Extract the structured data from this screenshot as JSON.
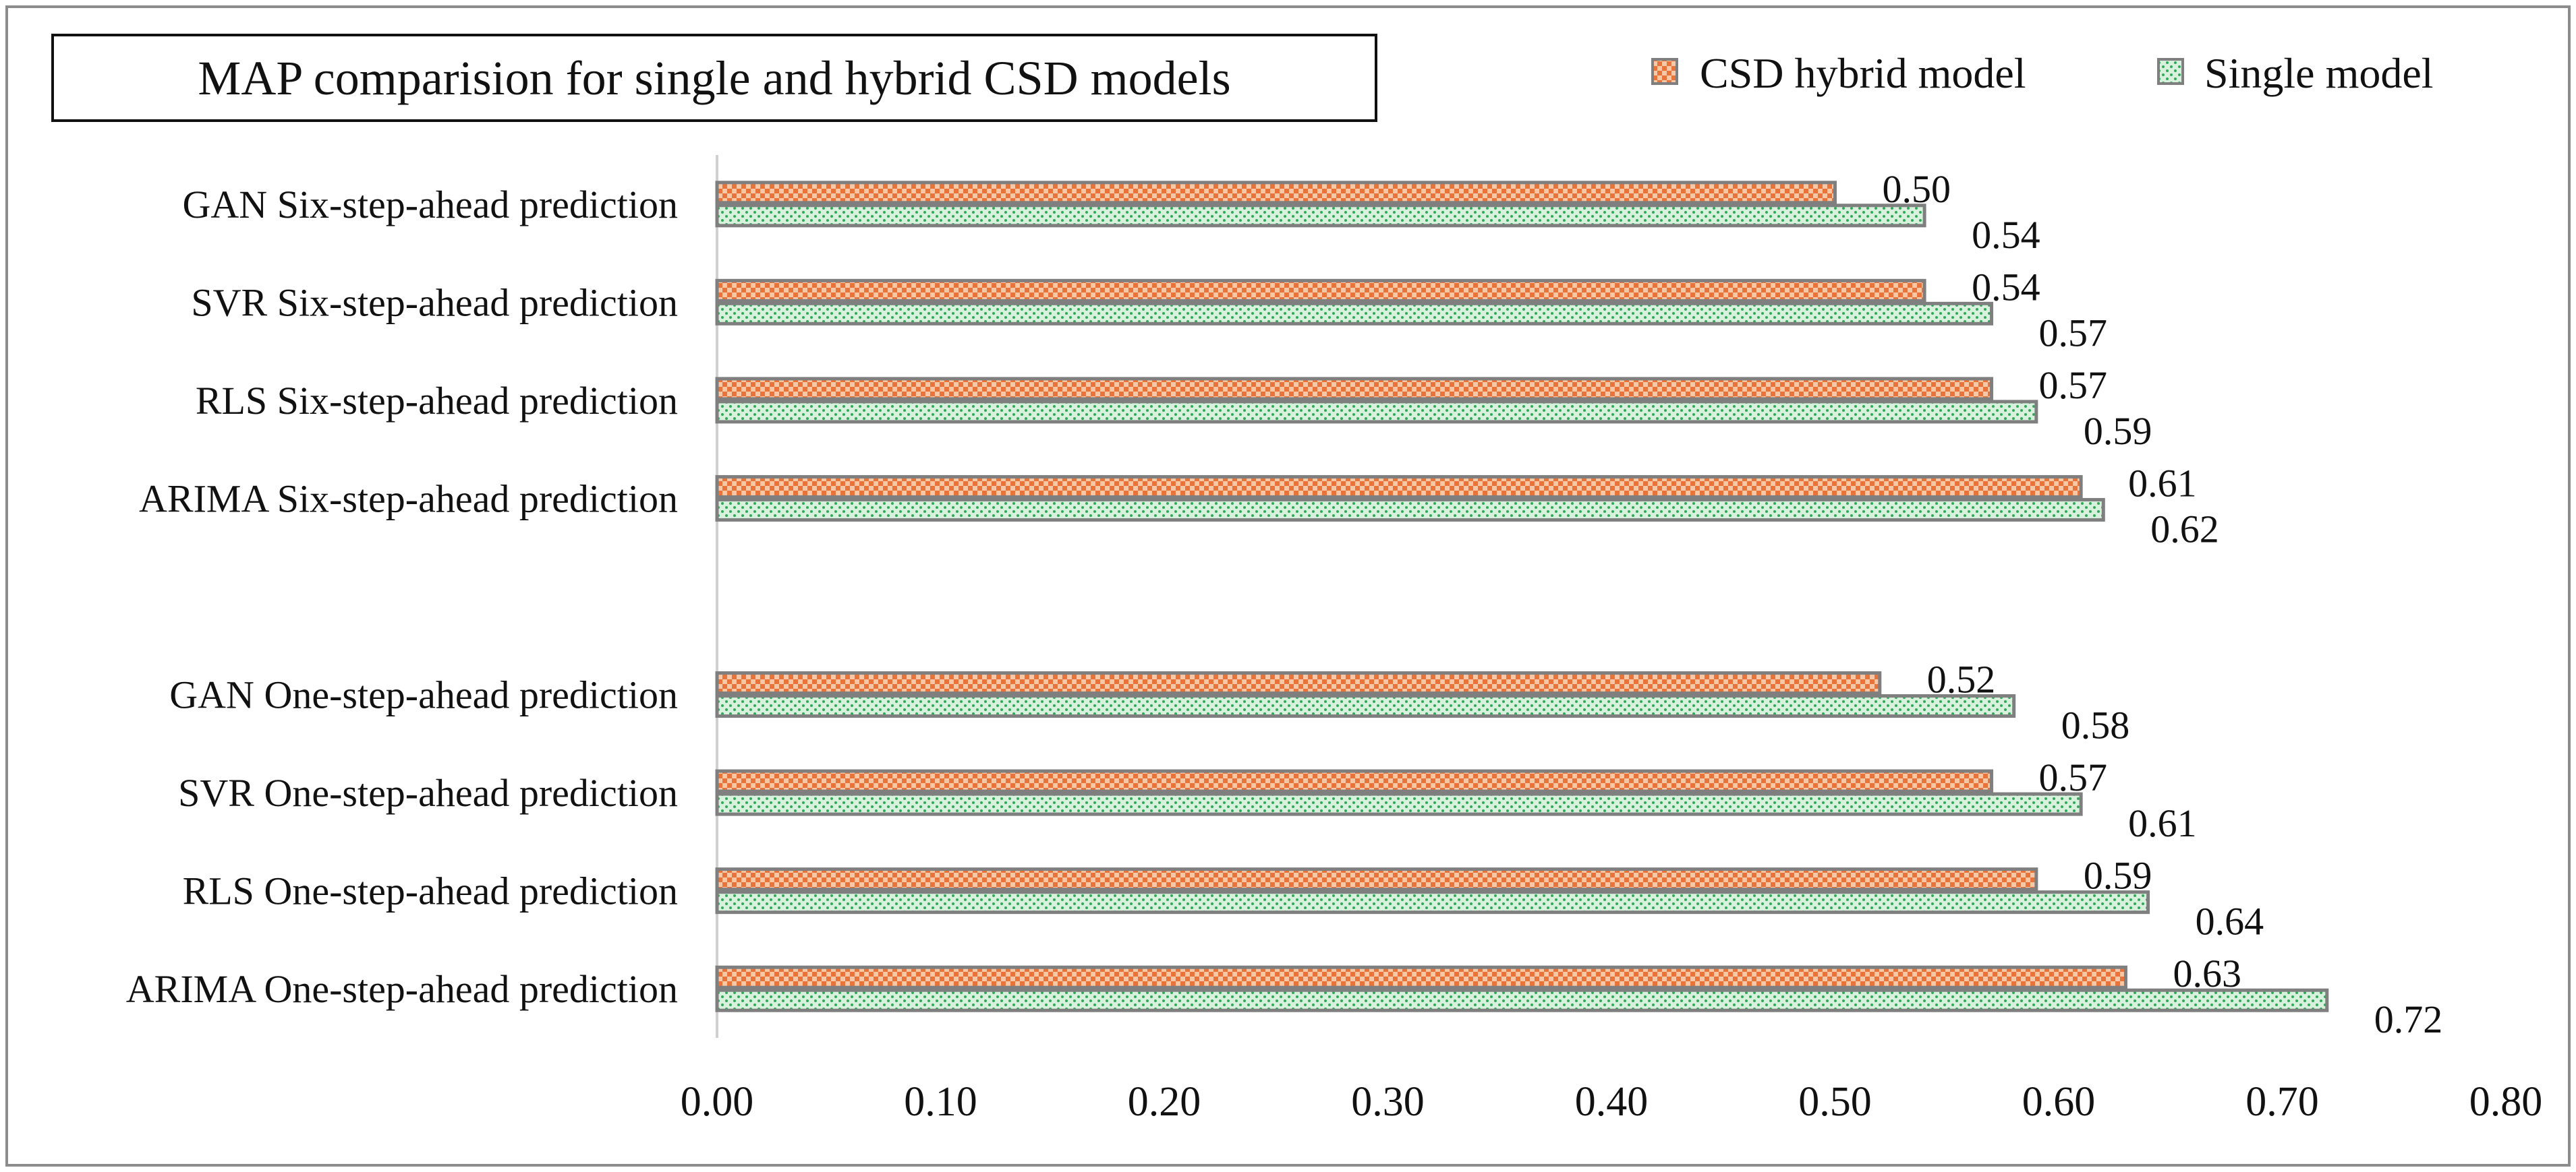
{
  "chart_data": {
    "type": "bar",
    "orientation": "horizontal",
    "title": "MAP comparision for single and hybrid CSD models",
    "xlabel": "",
    "ylabel": "",
    "xlim": [
      0,
      0.8
    ],
    "x_ticks": [
      "0.00",
      "0.10",
      "0.20",
      "0.30",
      "0.40",
      "0.50",
      "0.60",
      "0.70",
      "0.80"
    ],
    "categories": [
      "GAN Six-step-ahead prediction",
      "SVR Six-step-ahead prediction",
      "RLS Six-step-ahead prediction",
      "ARIMA Six-step-ahead prediction",
      "",
      "GAN One-step-ahead prediction",
      "SVR One-step-ahead prediction",
      "RLS One-step-ahead prediction",
      "ARIMA One-step-ahead prediction"
    ],
    "series": [
      {
        "name": "CSD hybrid model",
        "values": [
          0.5,
          0.54,
          0.57,
          0.61,
          null,
          0.52,
          0.57,
          0.59,
          0.63
        ],
        "labels": [
          "0.50",
          "0.54",
          "0.57",
          "0.61",
          "",
          "0.52",
          "0.57",
          "0.59",
          "0.63"
        ],
        "color": "#e8743b",
        "pattern": "checker"
      },
      {
        "name": "Single model",
        "values": [
          0.54,
          0.57,
          0.59,
          0.62,
          null,
          0.58,
          0.61,
          0.64,
          0.72
        ],
        "labels": [
          "0.54",
          "0.57",
          "0.59",
          "0.62",
          "",
          "0.58",
          "0.61",
          "0.64",
          "0.72"
        ],
        "color": "#2eaa58",
        "pattern": "dots"
      }
    ],
    "legend_position": "top-right",
    "grid": false,
    "colors": {
      "bar_stroke": "#7f7f7f",
      "axis": "#d0d0d0",
      "text": "#111111",
      "frame": "#8c8c8c"
    }
  }
}
